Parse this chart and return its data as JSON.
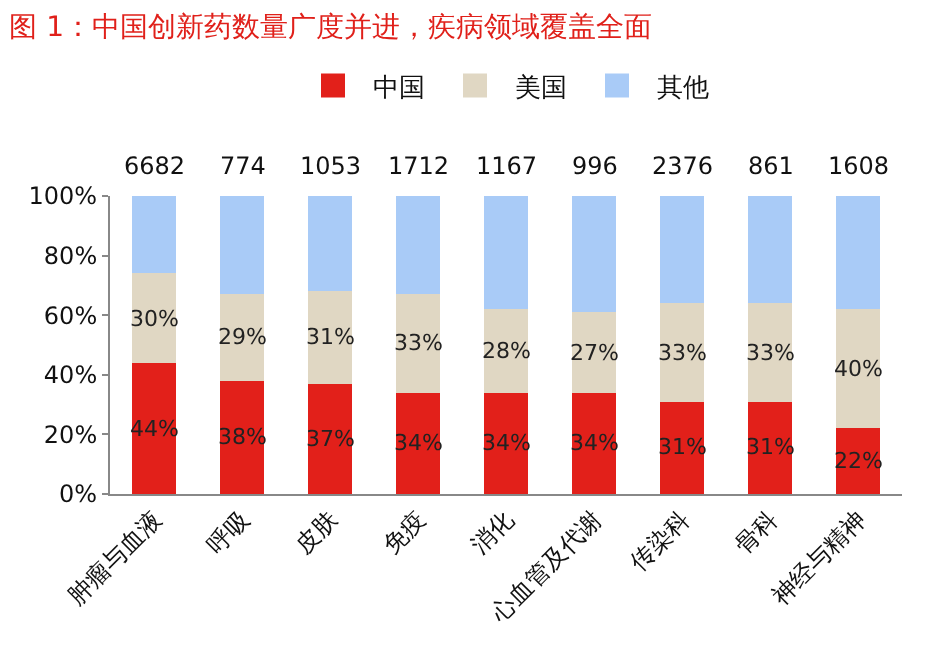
{
  "chart_data": {
    "type": "bar",
    "title": "图 1：中国创新药数量广度并进，疾病领域覆盖全面",
    "categories": [
      "肿瘤与血液",
      "呼吸",
      "皮肤",
      "免疫",
      "消化",
      "心血管及代谢",
      "传染科",
      "骨科",
      "神经与精神"
    ],
    "stacked": true,
    "series": [
      {
        "name": "中国",
        "color": "#e2201a",
        "values": [
          44,
          38,
          37,
          34,
          34,
          34,
          31,
          31,
          22
        ],
        "value_labels": [
          "44%",
          "38%",
          "37%",
          "34%",
          "34%",
          "34%",
          "31%",
          "31%",
          "22%"
        ]
      },
      {
        "name": "美国",
        "color": "#e0d7c3",
        "values": [
          30,
          29,
          31,
          33,
          28,
          27,
          33,
          33,
          40
        ],
        "value_labels": [
          "30%",
          "29%",
          "31%",
          "33%",
          "28%",
          "27%",
          "33%",
          "33%",
          "40%"
        ]
      },
      {
        "name": "其他",
        "color": "#a9cbf7",
        "values": [
          26,
          33,
          32,
          33,
          38,
          39,
          36,
          36,
          38
        ]
      }
    ],
    "annotations": [
      {
        "text": "6682",
        "x": "肿瘤与血液",
        "y": 100
      },
      {
        "text": "774",
        "x": "呼吸",
        "y": 100
      },
      {
        "text": "1053",
        "x": "皮肤",
        "y": 100
      },
      {
        "text": "1712",
        "x": "免疫",
        "y": 100
      },
      {
        "text": "1167",
        "x": "消化",
        "y": 100
      },
      {
        "text": "996",
        "x": "心血管及代谢",
        "y": 100
      },
      {
        "text": "2376",
        "x": "传染科",
        "y": 100
      },
      {
        "text": "861",
        "x": "骨科",
        "y": 100
      },
      {
        "text": "1608",
        "x": "神经与精神",
        "y": 100
      }
    ],
    "ylim": [
      0,
      100
    ],
    "yticks": [
      {
        "value": 0,
        "label": "0%"
      },
      {
        "value": 20,
        "label": "20%"
      },
      {
        "value": 40,
        "label": "40%"
      },
      {
        "value": 60,
        "label": "60%"
      },
      {
        "value": 80,
        "label": "80%"
      },
      {
        "value": 100,
        "label": "100%"
      }
    ],
    "grid": false,
    "legend": "top"
  }
}
